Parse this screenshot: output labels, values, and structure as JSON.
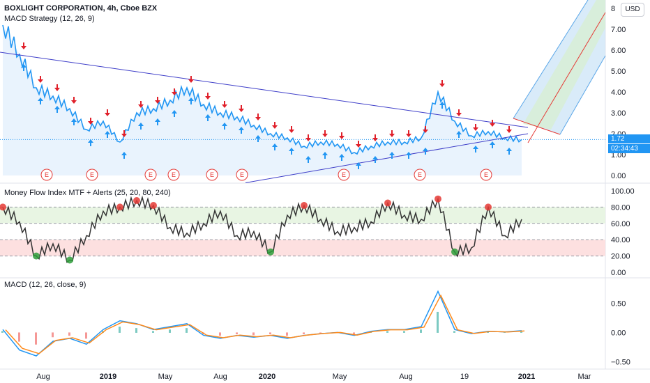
{
  "header": {
    "title": "BOXLIGHT CORPORATION, 4h, Cboe BZX",
    "indicator": "MACD Strategy (12, 26, 9)",
    "currency": "USD"
  },
  "price_tags": {
    "last_price": "1.72",
    "countdown": "02:34:43"
  },
  "x_axis": {
    "labels": [
      "Aug",
      "2019",
      "May",
      "Aug",
      "2020",
      "May",
      "Aug",
      "19",
      "2021",
      "Mar"
    ]
  },
  "colors": {
    "price": "#2196f3",
    "trendline": "#3f3fc9",
    "sell_arrow": "#e0202a",
    "buy_arrow": "#2196f3",
    "mfi_line": "#333333",
    "mfi_overbought_zone": "#e8f5e3",
    "mfi_oversold_zone": "#fde0e0",
    "macd_line": "#2196f3",
    "signal_line": "#ff8a1a",
    "earnings": "#e53935",
    "pitchfork_fill": "#cfe6f7"
  },
  "panes": [
    {
      "id": "price",
      "legend": "MACD Strategy (12, 26, 9)",
      "earnings_marker": "E"
    },
    {
      "id": "mfi",
      "legend": "Money Flow Index MTF + Alerts (25, 20, 80, 240)"
    },
    {
      "id": "macd",
      "legend": "MACD (12, 26, close, 9)"
    }
  ],
  "chart_data": [
    {
      "type": "line",
      "title": "BOXLIGHT CORPORATION, 4h, Cboe BZX",
      "series": [
        {
          "x": [
            "2018-06",
            "2018-07",
            "2018-08",
            "2018-09",
            "2018-10",
            "2018-11",
            "2018-12",
            "2019-01",
            "2019-02",
            "2019-03",
            "2019-04",
            "2019-05",
            "2019-06",
            "2019-07",
            "2019-08",
            "2019-09",
            "2019-10",
            "2019-11",
            "2019-12",
            "2020-01",
            "2020-02",
            "2020-03",
            "2020-04",
            "2020-05",
            "2020-06",
            "2020-07",
            "2020-08",
            "2020-09",
            "2020-10",
            "2020-11",
            "2020-12",
            "2021-01"
          ],
          "values": [
            7.2,
            5.8,
            4.2,
            3.8,
            3.2,
            2.2,
            2.6,
            1.6,
            3.0,
            3.2,
            3.6,
            4.2,
            3.4,
            3.0,
            2.8,
            2.4,
            2.0,
            1.8,
            1.4,
            1.6,
            1.5,
            1.1,
            1.4,
            1.6,
            1.6,
            1.8,
            4.0,
            2.6,
            1.9,
            2.1,
            1.8,
            1.72
          ]
        }
      ],
      "ylim": [
        0,
        8
      ],
      "yticks": [
        "0.00",
        "1.00",
        "2.00",
        "3.00",
        "4.00",
        "5.00",
        "6.00",
        "7.00",
        "8"
      ]
    },
    {
      "type": "line",
      "title": "Money Flow Index MTF + Alerts (25, 20, 80, 240)",
      "series": [
        {
          "x": [
            "2018-06",
            "2018-07",
            "2018-08",
            "2018-09",
            "2018-10",
            "2018-11",
            "2018-12",
            "2019-01",
            "2019-02",
            "2019-03",
            "2019-04",
            "2019-05",
            "2019-06",
            "2019-07",
            "2019-08",
            "2019-09",
            "2019-10",
            "2019-11",
            "2019-12",
            "2020-01",
            "2020-02",
            "2020-03",
            "2020-04",
            "2020-05",
            "2020-06",
            "2020-07",
            "2020-08",
            "2020-09",
            "2020-10",
            "2020-11",
            "2020-12",
            "2021-01"
          ],
          "values": [
            80,
            62,
            20,
            35,
            15,
            45,
            75,
            80,
            88,
            82,
            55,
            48,
            60,
            75,
            45,
            50,
            25,
            70,
            82,
            65,
            50,
            55,
            62,
            85,
            70,
            65,
            90,
            25,
            30,
            80,
            45,
            65
          ]
        }
      ],
      "ylim": [
        0,
        100
      ],
      "yticks": [
        "0.00",
        "20.00",
        "40.00",
        "60.00",
        "80.00",
        "100.00"
      ],
      "levels": [
        20,
        40,
        60,
        80
      ]
    },
    {
      "type": "line",
      "title": "MACD (12, 26, close, 9)",
      "series": [
        {
          "x": [
            "2018-06",
            "2018-07",
            "2018-08",
            "2018-09",
            "2018-10",
            "2018-11",
            "2018-12",
            "2019-01",
            "2019-02",
            "2019-03",
            "2019-04",
            "2019-05",
            "2019-06",
            "2019-07",
            "2019-08",
            "2019-09",
            "2019-10",
            "2019-11",
            "2019-12",
            "2020-01",
            "2020-02",
            "2020-03",
            "2020-04",
            "2020-05",
            "2020-06",
            "2020-07",
            "2020-08",
            "2020-09",
            "2020-10",
            "2020-11",
            "2020-12",
            "2021-01"
          ],
          "values": [
            0.05,
            -0.3,
            -0.4,
            -0.15,
            -0.1,
            -0.2,
            0.05,
            0.2,
            0.15,
            0.05,
            0.1,
            0.15,
            -0.05,
            -0.1,
            -0.05,
            -0.08,
            -0.05,
            -0.1,
            -0.05,
            -0.02,
            0.0,
            -0.05,
            0.02,
            0.05,
            0.05,
            0.1,
            0.7,
            0.05,
            -0.02,
            0.02,
            0.01,
            0.03
          ]
        }
      ],
      "ylim": [
        -0.6,
        0.8
      ],
      "yticks": [
        "−0.50",
        "0.00",
        "0.50"
      ]
    }
  ]
}
